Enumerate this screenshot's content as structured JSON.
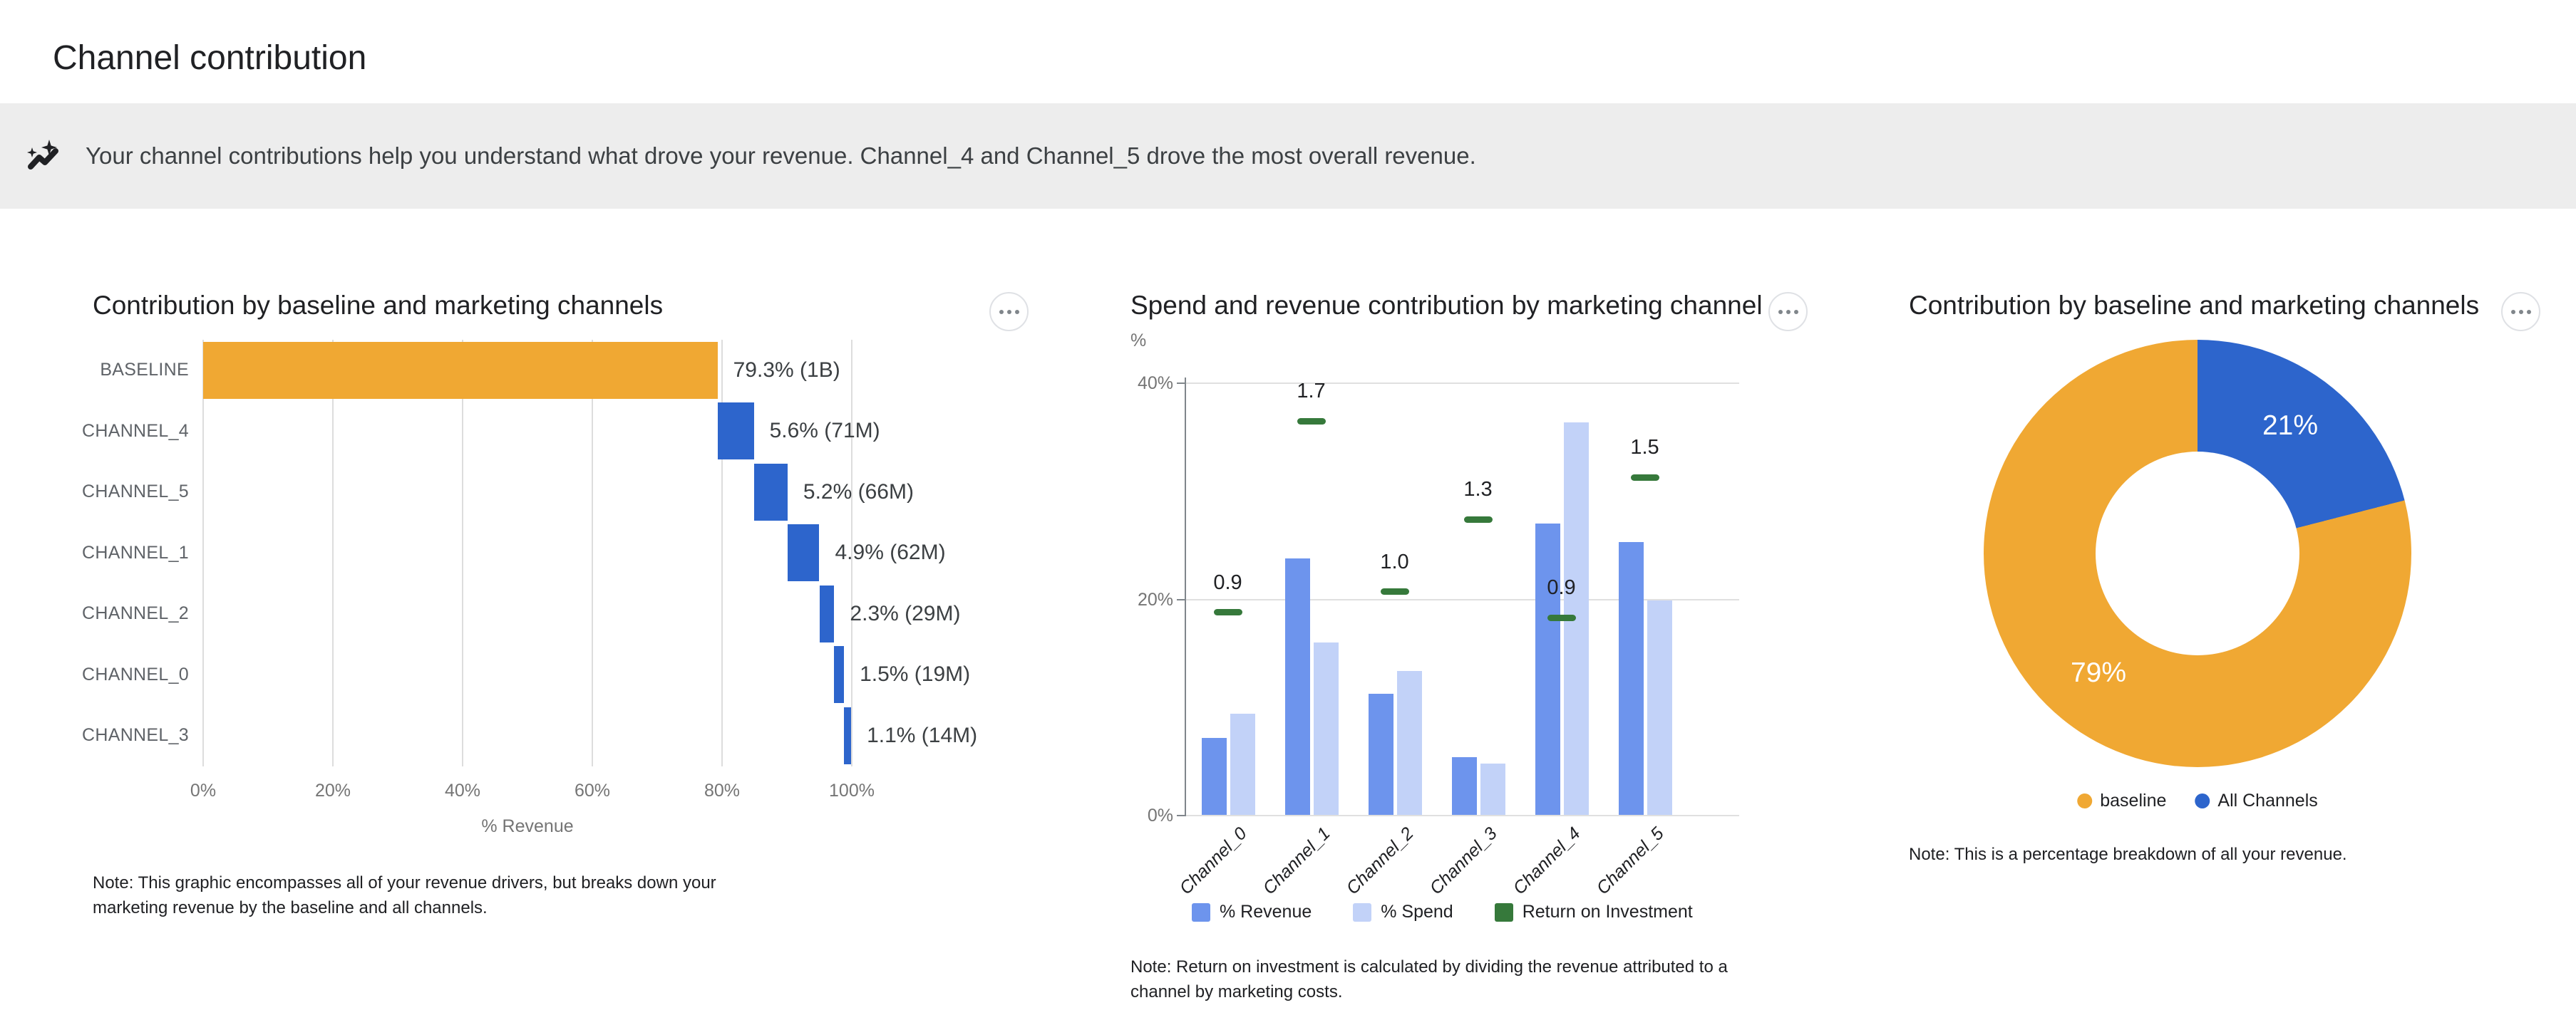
{
  "page": {
    "title": "Channel contribution"
  },
  "banner": {
    "icon": "insights-icon",
    "text": "Your channel contributions help you understand what drove your revenue. Channel_4 and Channel_5 drove the most overall revenue."
  },
  "chart_data": [
    {
      "type": "bar",
      "subtype": "horizontal-waterfall",
      "title": "Contribution by baseline and marketing channels",
      "categories": [
        "BASELINE",
        "CHANNEL_4",
        "CHANNEL_5",
        "CHANNEL_1",
        "CHANNEL_2",
        "CHANNEL_0",
        "CHANNEL_3"
      ],
      "values_pct": [
        79.3,
        5.6,
        5.2,
        4.9,
        2.3,
        1.5,
        1.1
      ],
      "value_labels": [
        "79.3% (1B)",
        "5.6% (71M)",
        "5.2% (66M)",
        "4.9% (62M)",
        "2.3% (29M)",
        "1.5% (19M)",
        "1.1% (14M)"
      ],
      "x_ticks": [
        "0%",
        "20%",
        "40%",
        "60%",
        "80%",
        "100%"
      ],
      "xlim": [
        0,
        100
      ],
      "xlabel": "% Revenue",
      "grid": true,
      "colors": {
        "baseline": "#F0A833",
        "channel": "#2D65CC"
      },
      "note": "Note: This graphic encompasses all of your revenue drivers, but breaks down your marketing revenue by the baseline and all channels."
    },
    {
      "type": "bar",
      "subtype": "grouped-bars-with-roi-markers",
      "title": "Spend and revenue contribution by marketing channel",
      "categories": [
        "Channel_0",
        "Channel_1",
        "Channel_2",
        "Channel_3",
        "Channel_4",
        "Channel_5"
      ],
      "series": [
        {
          "name": "% Revenue",
          "type": "bar",
          "color": "#6D94ED",
          "values_pct": [
            7.2,
            23.8,
            11.3,
            5.4,
            27.0,
            25.3
          ]
        },
        {
          "name": "% Spend",
          "type": "bar",
          "color": "#C2D2F8",
          "values_pct": [
            9.4,
            16.0,
            13.4,
            4.8,
            36.4,
            19.9
          ]
        },
        {
          "name": "Return on Investment",
          "type": "marker",
          "color": "#36793B",
          "values": [
            0.9,
            1.7,
            1.0,
            1.3,
            0.9,
            1.5
          ],
          "value_labels": [
            "0.9",
            "1.7",
            "1.0",
            "1.3",
            "0.9",
            "1.5"
          ],
          "marker_axis_pct": [
            18.8,
            36.5,
            20.7,
            27.4,
            18.3,
            31.3
          ]
        }
      ],
      "ylabel_unit": "%",
      "y_ticks": [
        "0%",
        "20%",
        "40%"
      ],
      "y_tick_values": [
        0,
        20,
        40
      ],
      "ylim": [
        0,
        40
      ],
      "grid": true,
      "legend_position": "bottom",
      "note": "Note: Return on investment is calculated by dividing the revenue attributed to a channel by marketing costs."
    },
    {
      "type": "pie",
      "subtype": "donut",
      "title": "Contribution by baseline and marketing channels",
      "slices": [
        {
          "label": "All Channels",
          "value_pct": 21,
          "display_label": "21%",
          "color": "#2D65CC"
        },
        {
          "label": "baseline",
          "value_pct": 79,
          "display_label": "79%",
          "color": "#F0A833"
        }
      ],
      "legend": [
        "baseline",
        "All Channels"
      ],
      "legend_position": "bottom",
      "note": "Note: This is a percentage breakdown of all your revenue."
    }
  ]
}
